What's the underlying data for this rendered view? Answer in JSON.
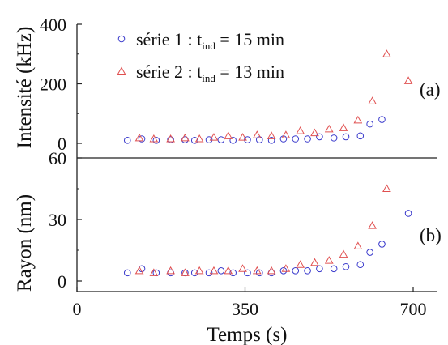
{
  "chart_data": [
    {
      "panel": "(a)",
      "type": "scatter",
      "ylabel": "Intensité (kHz)",
      "xlim": [
        0,
        700
      ],
      "ylim": [
        0,
        400
      ],
      "yticks": [
        "0",
        "200",
        "400"
      ],
      "series": [
        {
          "name": "série 1 : t_ind = 15 min",
          "marker": "circle",
          "color": "#3a3acc",
          "x": [
            105,
            135,
            165,
            195,
            225,
            245,
            275,
            300,
            325,
            355,
            380,
            405,
            430,
            455,
            480,
            505,
            535,
            560,
            590,
            610,
            635
          ],
          "y": [
            10,
            15,
            10,
            12,
            12,
            10,
            12,
            12,
            10,
            12,
            12,
            10,
            15,
            15,
            15,
            22,
            18,
            22,
            25,
            65,
            80
          ]
        },
        {
          "name": "série 2 : t_ind = 13 min",
          "marker": "triangle",
          "color": "#e05050",
          "x": [
            130,
            160,
            195,
            225,
            255,
            285,
            315,
            345,
            375,
            405,
            435,
            465,
            495,
            525,
            555,
            585,
            615,
            645,
            690
          ],
          "y": [
            18,
            15,
            15,
            18,
            15,
            20,
            25,
            20,
            28,
            25,
            28,
            42,
            35,
            48,
            52,
            78,
            142,
            300,
            210
          ]
        }
      ],
      "legend": [
        {
          "text": "série 1 : t",
          "sub": "ind",
          "rest": " = 15 min"
        },
        {
          "text": "série 2 : t",
          "sub": "ind",
          "rest": " = 13 min"
        }
      ]
    },
    {
      "panel": "(b)",
      "type": "scatter",
      "ylabel": "Rayon (nm)",
      "xlabel": "Temps (s)",
      "xlim": [
        0,
        700
      ],
      "ylim": [
        0,
        60
      ],
      "yticks": [
        "0",
        "30",
        "60"
      ],
      "xticks": [
        "0",
        "350",
        "700"
      ],
      "series": [
        {
          "name": "série 1 : t_ind = 15 min",
          "marker": "circle",
          "color": "#3a3acc",
          "x": [
            105,
            135,
            165,
            195,
            225,
            245,
            275,
            300,
            325,
            355,
            380,
            405,
            430,
            455,
            480,
            505,
            535,
            560,
            590,
            610,
            635,
            690
          ],
          "y": [
            4,
            6,
            4,
            4,
            4,
            4,
            4,
            5,
            4,
            4,
            4,
            4,
            5,
            5,
            5,
            6,
            6,
            7,
            8,
            14,
            18,
            33
          ]
        },
        {
          "name": "série 2 : t_ind = 13 min",
          "marker": "triangle",
          "color": "#e05050",
          "x": [
            130,
            160,
            195,
            225,
            255,
            285,
            315,
            345,
            375,
            405,
            435,
            465,
            495,
            525,
            555,
            585,
            615,
            645
          ],
          "y": [
            5,
            4,
            5,
            4,
            5,
            5,
            5,
            6,
            5,
            5,
            6,
            8,
            9,
            10,
            13,
            17,
            27,
            45
          ]
        }
      ]
    }
  ],
  "labels": {
    "panel_a": "(a)",
    "panel_b": "(b)"
  }
}
